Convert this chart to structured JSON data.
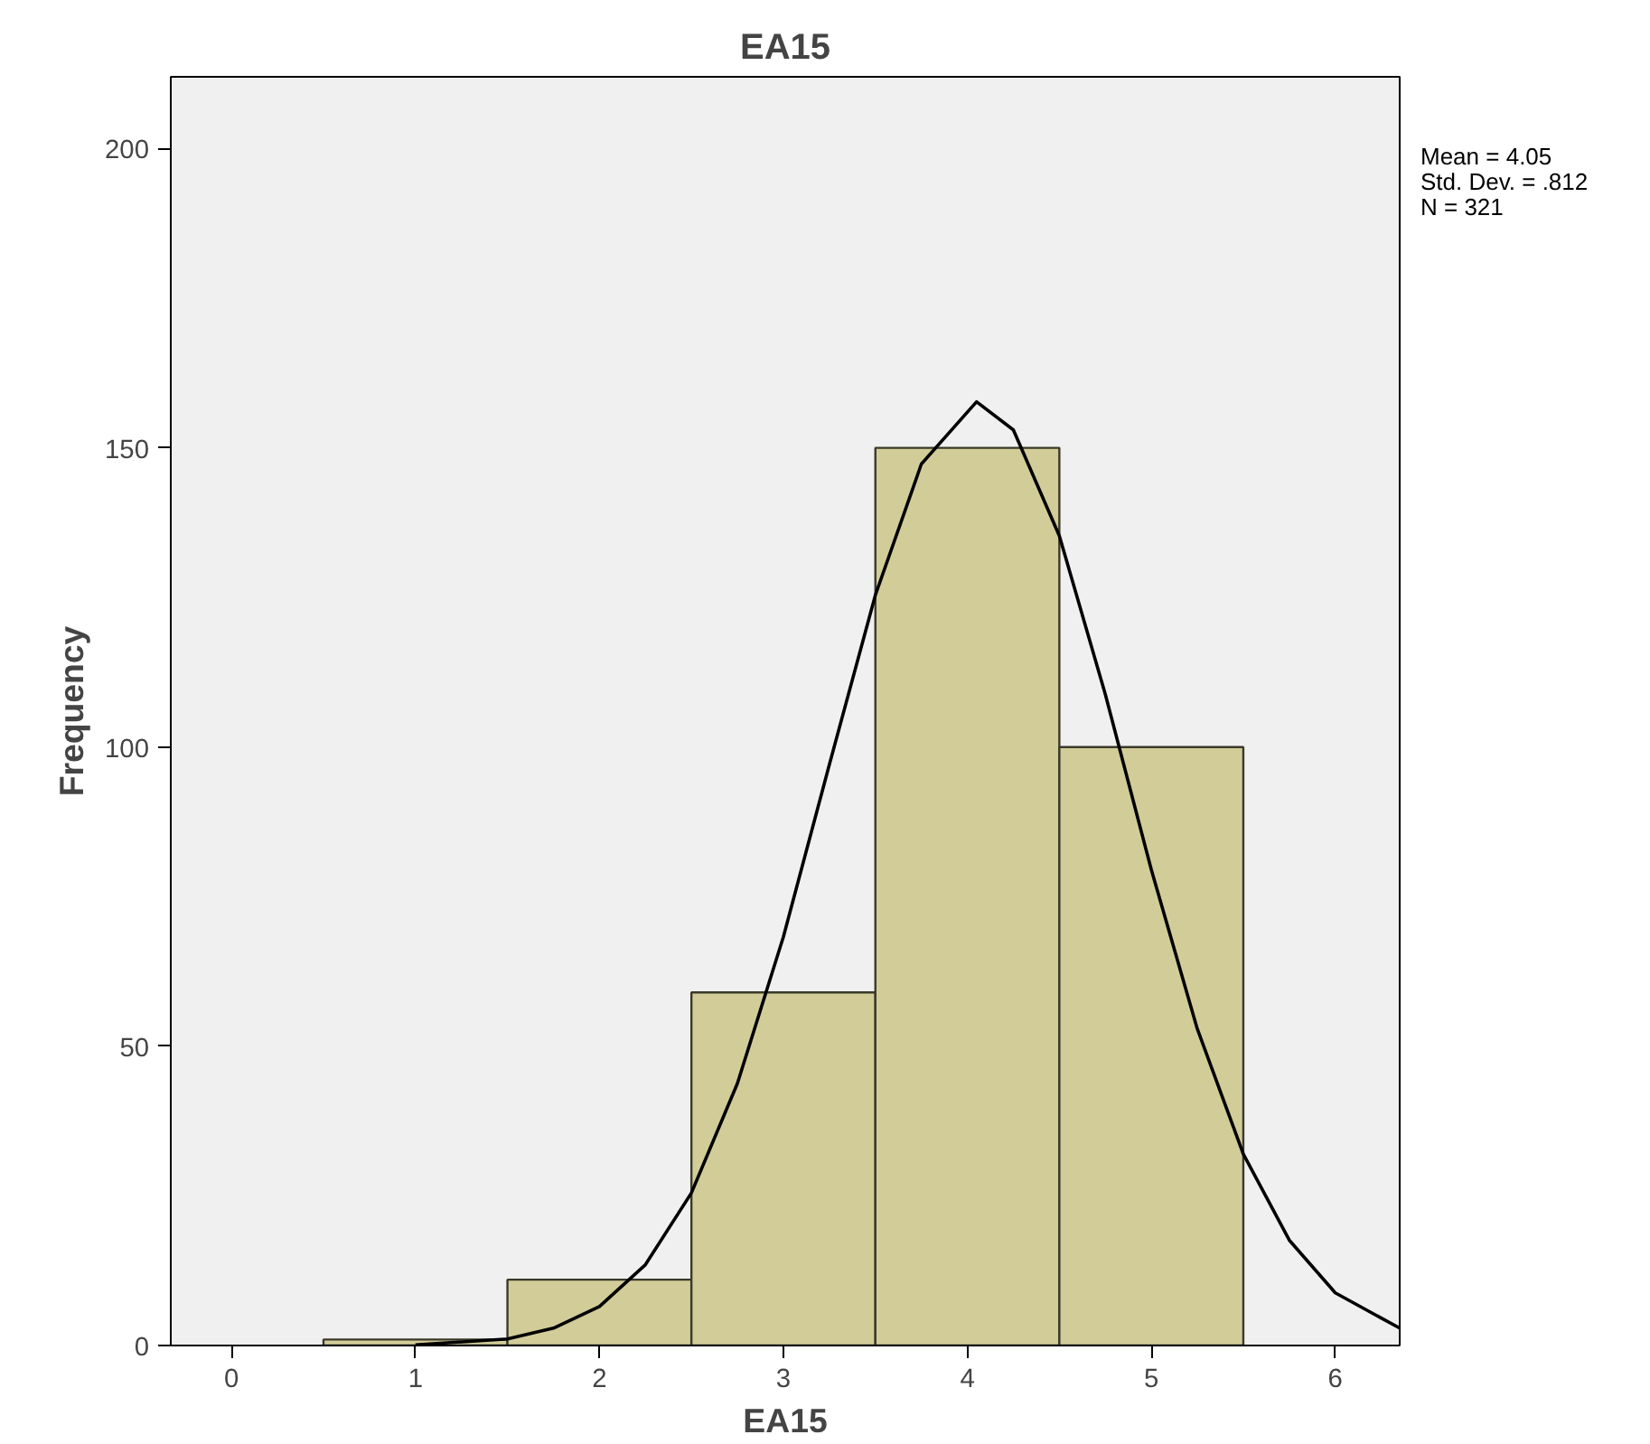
{
  "chart_data": {
    "type": "histogram",
    "title": "EA15",
    "xlabel": "EA15",
    "ylabel": "Frequency",
    "bins": [
      0.5,
      1.5,
      2.5,
      3.5,
      4.5,
      5.5
    ],
    "values": [
      1,
      11,
      59,
      150,
      100
    ],
    "color": "#d2cd98",
    "series": [
      {
        "type": "line",
        "color": "#000000",
        "x": [
          1.0,
          1.5,
          1.75,
          2.0,
          2.25,
          2.5,
          2.75,
          3.0,
          3.25,
          3.5,
          3.75,
          4.05,
          4.25,
          4.5,
          4.75,
          5.0,
          5.25,
          5.5,
          5.75,
          6.0,
          6.35
        ],
        "values": [
          0.1,
          1.1,
          2.9,
          6.5,
          13.5,
          25.5,
          43.8,
          68.3,
          97.1,
          125.4,
          147.3,
          157.7,
          153.0,
          135.3,
          108.8,
          79.5,
          52.9,
          32.0,
          17.6,
          8.8,
          2.9
        ]
      }
    ],
    "xlim": [
      -0.33,
      6.35
    ],
    "ylim": [
      0,
      212
    ],
    "xticks": [
      0,
      1,
      2,
      3,
      4,
      5,
      6
    ],
    "yticks": [
      0,
      50,
      100,
      150,
      200
    ],
    "grid": false,
    "annotations": [
      "Mean = 4.05",
      "Std. Dev. = .812",
      "N = 321"
    ]
  }
}
